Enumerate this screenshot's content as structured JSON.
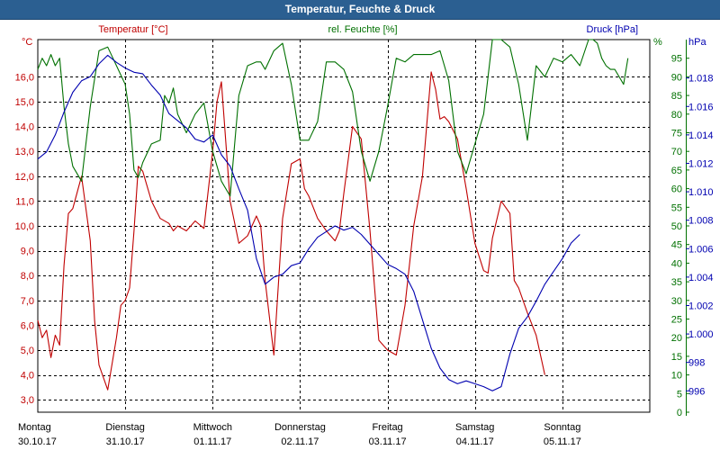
{
  "window": {
    "title": "Temperatur, Feuchte & Druck"
  },
  "colors": {
    "temperature": "#c00000",
    "humidity": "#007000",
    "pressure": "#0000b0",
    "grid": "#000000"
  },
  "chart_data": {
    "type": "line",
    "title": "Temperatur, Feuchte & Druck",
    "xlabel": "",
    "x_categories": [
      {
        "day": "Montag",
        "date": "30.10.17"
      },
      {
        "day": "Dienstag",
        "date": "31.10.17"
      },
      {
        "day": "Mittwoch",
        "date": "01.11.17"
      },
      {
        "day": "Donnerstag",
        "date": "02.11.17"
      },
      {
        "day": "Freitag",
        "date": "03.11.17"
      },
      {
        "day": "Samstag",
        "date": "04.11.17"
      },
      {
        "day": "Sonntag",
        "date": "05.11.17"
      }
    ],
    "x_range_days": [
      0,
      7
    ],
    "axes": {
      "temperature": {
        "unit": "°C",
        "label": "Temperatur [°C]",
        "ylim": [
          2.5,
          17.5
        ],
        "ticks": [
          "3,0",
          "4,0",
          "5,0",
          "6,0",
          "7,0",
          "8,0",
          "9,0",
          "10,0",
          "11,0",
          "12,0",
          "13,0",
          "14,0",
          "15,0",
          "16,0"
        ]
      },
      "humidity": {
        "unit": "%",
        "label": "rel. Feuchte [%]",
        "ylim": [
          0,
          100
        ],
        "ticks": [
          "0",
          "5",
          "10",
          "15",
          "20",
          "25",
          "30",
          "35",
          "40",
          "45",
          "50",
          "55",
          "60",
          "65",
          "70",
          "75",
          "80",
          "85",
          "90",
          "95"
        ]
      },
      "pressure": {
        "unit": "hPa",
        "label": "Druck [hPa]",
        "ylim": [
          994.5,
          1020.7
        ],
        "ticks": [
          "996",
          "998",
          "1.000",
          "1.002",
          "1.004",
          "1.006",
          "1.008",
          "1.010",
          "1.012",
          "1.014",
          "1.016",
          "1.018"
        ]
      }
    },
    "series": [
      {
        "name": "Temperatur [°C]",
        "axis": "temperature",
        "x": [
          0,
          0.05,
          0.1,
          0.15,
          0.2,
          0.25,
          0.3,
          0.35,
          0.4,
          0.5,
          0.6,
          0.65,
          0.7,
          0.8,
          0.9,
          0.95,
          1.0,
          1.05,
          1.1,
          1.15,
          1.2,
          1.3,
          1.4,
          1.5,
          1.55,
          1.6,
          1.7,
          1.8,
          1.9,
          2.0,
          2.05,
          2.1,
          2.2,
          2.3,
          2.4,
          2.5,
          2.55,
          2.6,
          2.7,
          2.8,
          2.9,
          3.0,
          3.05,
          3.1,
          3.2,
          3.3,
          3.4,
          3.45,
          3.5,
          3.6,
          3.7,
          3.8,
          3.9,
          4.0,
          4.1,
          4.2,
          4.3,
          4.4,
          4.5,
          4.55,
          4.6,
          4.65,
          4.7,
          4.8,
          4.9,
          5.0,
          5.1,
          5.15,
          5.2,
          5.3,
          5.4,
          5.45,
          5.5,
          5.6,
          5.7,
          5.8,
          5.9,
          6.0,
          6.05,
          6.1,
          6.2,
          6.3,
          6.4,
          6.5,
          6.6,
          6.7,
          6.75
        ],
        "values": [
          6.2,
          5.5,
          5.8,
          4.7,
          5.6,
          5.2,
          8.4,
          10.5,
          10.7,
          12.0,
          9.4,
          6.2,
          4.4,
          3.4,
          5.5,
          6.8,
          7.0,
          7.5,
          9.8,
          12.4,
          12.2,
          11.0,
          10.3,
          10.1,
          9.8,
          10.0,
          9.8,
          10.2,
          9.9,
          13.0,
          15.0,
          15.8,
          11.0,
          9.3,
          9.6,
          10.4,
          10.0,
          7.8,
          4.8,
          10.3,
          12.5,
          12.7,
          11.5,
          11.2,
          10.3,
          9.8,
          9.4,
          9.8,
          11.3,
          14.0,
          13.5,
          9.8,
          5.4,
          5.0,
          4.8,
          6.8,
          10.0,
          12.0,
          16.2,
          15.5,
          14.3,
          14.4,
          14.2,
          13.5,
          11.5,
          9.3,
          8.2,
          8.1,
          9.5,
          11.0,
          10.5,
          7.8,
          7.5,
          6.5,
          5.6,
          4.0,
          null,
          null,
          null,
          null,
          null,
          null,
          null,
          null,
          null,
          null,
          null
        ]
      },
      {
        "name": "rel. Feuchte [%]",
        "axis": "humidity",
        "x": [
          0,
          0.05,
          0.1,
          0.15,
          0.2,
          0.25,
          0.3,
          0.35,
          0.4,
          0.5,
          0.6,
          0.7,
          0.8,
          0.9,
          1.0,
          1.05,
          1.1,
          1.15,
          1.2,
          1.3,
          1.4,
          1.45,
          1.5,
          1.55,
          1.6,
          1.7,
          1.8,
          1.9,
          2.0,
          2.1,
          2.2,
          2.3,
          2.4,
          2.5,
          2.55,
          2.6,
          2.7,
          2.8,
          2.9,
          3.0,
          3.1,
          3.2,
          3.3,
          3.4,
          3.5,
          3.6,
          3.7,
          3.8,
          3.9,
          4.0,
          4.1,
          4.2,
          4.3,
          4.4,
          4.5,
          4.6,
          4.7,
          4.8,
          4.9,
          5.0,
          5.1,
          5.2,
          5.3,
          5.4,
          5.5,
          5.6,
          5.7,
          5.8,
          5.9,
          6.0,
          6.1,
          6.2,
          6.3,
          6.35,
          6.4,
          6.45,
          6.5,
          6.55,
          6.6,
          6.65,
          6.7,
          6.75
        ],
        "values": [
          92,
          95,
          93,
          96,
          93,
          95,
          82,
          72,
          66,
          62,
          82,
          97,
          98,
          93,
          88,
          80,
          65,
          63,
          67,
          72,
          73,
          85,
          83,
          87,
          80,
          75,
          80,
          83,
          70,
          62,
          58,
          85,
          93,
          94,
          94,
          92,
          97,
          99,
          88,
          73,
          73,
          78,
          94,
          94,
          92,
          86,
          70,
          62,
          70,
          82,
          95,
          94,
          96,
          96,
          96,
          97,
          89,
          70,
          64,
          72,
          80,
          100,
          100,
          98,
          88,
          73,
          93,
          90,
          95,
          94,
          96,
          93,
          100,
          100,
          99,
          95,
          93,
          92,
          92,
          90,
          88,
          95
        ]
      },
      {
        "name": "Druck [hPa]",
        "axis": "pressure",
        "x": [
          0,
          0.1,
          0.2,
          0.3,
          0.4,
          0.5,
          0.6,
          0.7,
          0.8,
          0.9,
          1.0,
          1.1,
          1.2,
          1.3,
          1.4,
          1.5,
          1.6,
          1.7,
          1.8,
          1.9,
          2.0,
          2.1,
          2.2,
          2.3,
          2.4,
          2.5,
          2.6,
          2.7,
          2.8,
          2.9,
          3.0,
          3.1,
          3.2,
          3.3,
          3.4,
          3.5,
          3.6,
          3.7,
          3.8,
          3.9,
          4.0,
          4.1,
          4.2,
          4.3,
          4.4,
          4.5,
          4.6,
          4.7,
          4.8,
          4.9,
          5.0,
          5.1,
          5.2,
          5.3,
          5.4,
          5.5,
          5.6,
          5.7,
          5.8,
          5.9,
          6.0,
          6.1,
          6.2,
          6.3,
          6.4,
          6.5,
          6.6,
          6.7,
          6.75
        ],
        "values": [
          1012.3,
          1012.8,
          1014.0,
          1015.6,
          1017.0,
          1017.8,
          1018.1,
          1019.0,
          1019.6,
          1019.1,
          1018.7,
          1018.4,
          1018.3,
          1017.5,
          1016.8,
          1015.5,
          1015.0,
          1014.5,
          1013.7,
          1013.5,
          1014.0,
          1012.6,
          1011.8,
          1010.2,
          1008.7,
          1005.3,
          1003.5,
          1004.0,
          1004.2,
          1004.8,
          1005.0,
          1006.0,
          1006.8,
          1007.2,
          1007.6,
          1007.3,
          1007.5,
          1007.0,
          1006.3,
          1005.6,
          1004.9,
          1004.6,
          1004.2,
          1003.0,
          1001.0,
          999.0,
          997.6,
          996.8,
          996.5,
          996.7,
          996.5,
          996.3,
          996.0,
          996.3,
          998.6,
          1000.4,
          1001.2,
          1002.3,
          1003.5,
          1004.4,
          1005.3,
          1006.4,
          1007.0,
          null,
          null,
          null,
          null,
          null,
          null
        ]
      }
    ],
    "legend": [
      "Temperatur [°C]",
      "rel. Feuchte [%]",
      "Druck [hPa]"
    ],
    "grid": true
  }
}
